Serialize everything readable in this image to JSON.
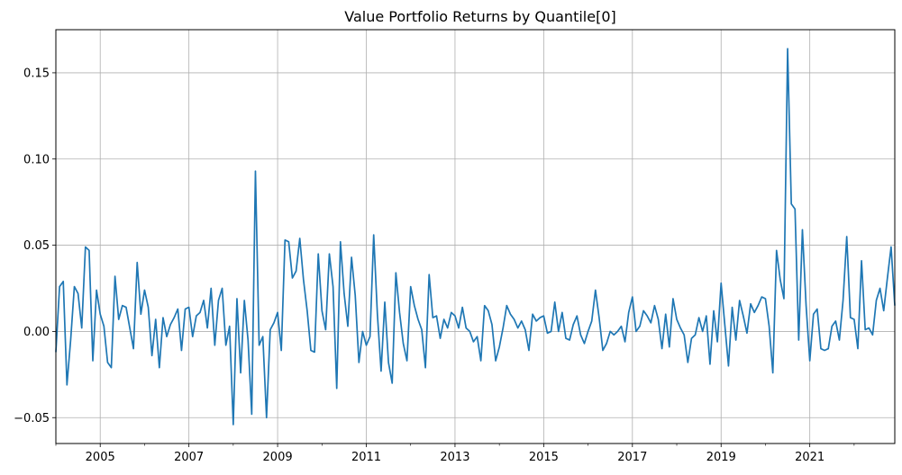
{
  "chart_data": {
    "type": "line",
    "title": "Value Portfolio Returns by Quantile[0]",
    "xlabel": "",
    "ylabel": "",
    "grid": true,
    "line_color": "#1f77b4",
    "ylim": [
      -0.065,
      0.175
    ],
    "xlim": [
      "2004-01",
      "2022-12"
    ],
    "y_ticks": [
      -0.05,
      0.0,
      0.05,
      0.1,
      0.15
    ],
    "y_tick_labels": [
      "−0.05",
      "0.00",
      "0.05",
      "0.10",
      "0.15"
    ],
    "x_ticks": [
      "2005-01",
      "2007-01",
      "2009-01",
      "2011-01",
      "2013-01",
      "2015-01",
      "2017-01",
      "2019-01",
      "2021-01"
    ],
    "x_tick_labels": [
      "2005",
      "2007",
      "2009",
      "2011",
      "2013",
      "2015",
      "2017",
      "2019",
      "2021"
    ],
    "x_minor_ticks": [
      "2004-01",
      "2006-01",
      "2008-01",
      "2010-01",
      "2012-01",
      "2014-01",
      "2016-01",
      "2018-01",
      "2020-01",
      "2022-01"
    ],
    "series": [
      {
        "start": "2004-01",
        "frequency": "monthly",
        "values": [
          -0.012,
          0.026,
          0.029,
          -0.031,
          -0.005,
          0.026,
          0.022,
          0.002,
          0.049,
          0.047,
          -0.017,
          0.024,
          0.01,
          0.003,
          -0.018,
          -0.021,
          0.032,
          0.007,
          0.015,
          0.014,
          0.002,
          -0.01,
          0.04,
          0.01,
          0.024,
          0.014,
          -0.014,
          0.007,
          -0.021,
          0.008,
          -0.003,
          0.004,
          0.008,
          0.013,
          -0.011,
          0.013,
          0.014,
          -0.003,
          0.009,
          0.011,
          0.018,
          0.002,
          0.025,
          -0.008,
          0.018,
          0.025,
          -0.008,
          0.003,
          -0.054,
          0.019,
          -0.024,
          0.018,
          -0.005,
          -0.048,
          0.093,
          -0.008,
          -0.003,
          -0.05,
          0.001,
          0.005,
          0.011,
          -0.011,
          0.053,
          0.052,
          0.031,
          0.035,
          0.054,
          0.03,
          0.012,
          -0.011,
          -0.012,
          0.045,
          0.012,
          0.001,
          0.045,
          0.026,
          -0.033,
          0.052,
          0.022,
          0.003,
          0.043,
          0.021,
          -0.018,
          0.0,
          -0.008,
          -0.003,
          0.056,
          0.01,
          -0.023,
          0.017,
          -0.018,
          -0.03,
          0.034,
          0.011,
          -0.007,
          -0.017,
          0.026,
          0.015,
          0.007,
          0.001,
          -0.021,
          0.033,
          0.008,
          0.009,
          -0.004,
          0.007,
          0.002,
          0.011,
          0.009,
          0.002,
          0.014,
          0.002,
          0.0,
          -0.006,
          -0.003,
          -0.017,
          0.015,
          0.012,
          0.004,
          -0.017,
          -0.009,
          0.002,
          0.015,
          0.01,
          0.007,
          0.002,
          0.006,
          0.001,
          -0.011,
          0.01,
          0.006,
          0.008,
          0.009,
          -0.001,
          0.0,
          0.017,
          0.0,
          0.011,
          -0.004,
          -0.005,
          0.004,
          0.009,
          -0.002,
          -0.007,
          0.0,
          0.006,
          0.024,
          0.008,
          -0.011,
          -0.007,
          0.0,
          -0.002,
          0.0,
          0.003,
          -0.006,
          0.011,
          0.02,
          0.0,
          0.003,
          0.012,
          0.009,
          0.005,
          0.015,
          0.007,
          -0.01,
          0.01,
          -0.009,
          0.019,
          0.007,
          0.002,
          -0.002,
          -0.018,
          -0.004,
          -0.002,
          0.008,
          0.0,
          0.009,
          -0.019,
          0.012,
          -0.006,
          0.028,
          0.004,
          -0.02,
          0.014,
          -0.005,
          0.018,
          0.009,
          -0.001,
          0.016,
          0.011,
          0.015,
          0.02,
          0.019,
          0.003,
          -0.024,
          0.047,
          0.03,
          0.019,
          0.164,
          0.074,
          0.071,
          -0.005,
          0.059,
          0.015,
          -0.017,
          0.01,
          0.013,
          -0.01,
          -0.011,
          -0.01,
          0.003,
          0.006,
          -0.005,
          0.018,
          0.055,
          0.008,
          0.007,
          -0.01,
          0.041,
          0.001,
          0.002,
          -0.002,
          0.018,
          0.025,
          0.012,
          0.031,
          0.049,
          0.015
        ]
      }
    ]
  }
}
